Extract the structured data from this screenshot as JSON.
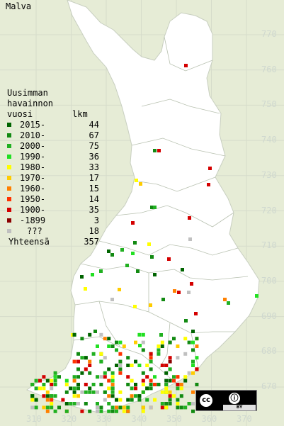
{
  "title": "Malva",
  "legend": {
    "header": [
      "Uusimman",
      "havainnon"
    ],
    "col_label": "vuosi",
    "col_count": "lkm",
    "items": [
      {
        "label": "2015-",
        "count": "44",
        "color": "#006400"
      },
      {
        "label": "2010-",
        "count": "67",
        "color": "#128a12"
      },
      {
        "label": "2000-",
        "count": "75",
        "color": "#21b021"
      },
      {
        "label": "1990-",
        "count": "36",
        "color": "#22e022"
      },
      {
        "label": "1980-",
        "count": "33",
        "color": "#ffff00"
      },
      {
        "label": "1970-",
        "count": "17",
        "color": "#ffcc00"
      },
      {
        "label": "1960-",
        "count": "15",
        "color": "#ff8000"
      },
      {
        "label": "1950-",
        "count": "14",
        "color": "#ff3300"
      },
      {
        "label": "1900-",
        "count": "35",
        "color": "#d40000"
      },
      {
        "label": "-1899",
        "count": "3",
        "color": "#8b0000"
      },
      {
        "label": "???",
        "count": "18",
        "color": "#c0c0c0"
      }
    ],
    "total_label": "Yhteensä",
    "total_count": "357"
  },
  "y_axis": [
    "770",
    "760",
    "750",
    "740",
    "730",
    "720",
    "710",
    "700",
    "690",
    "680",
    "670"
  ],
  "x_axis": [
    "310",
    "320",
    "330",
    "340",
    "350",
    "360",
    "370"
  ],
  "badge": {
    "cc": "cc",
    "by": "BY"
  }
}
